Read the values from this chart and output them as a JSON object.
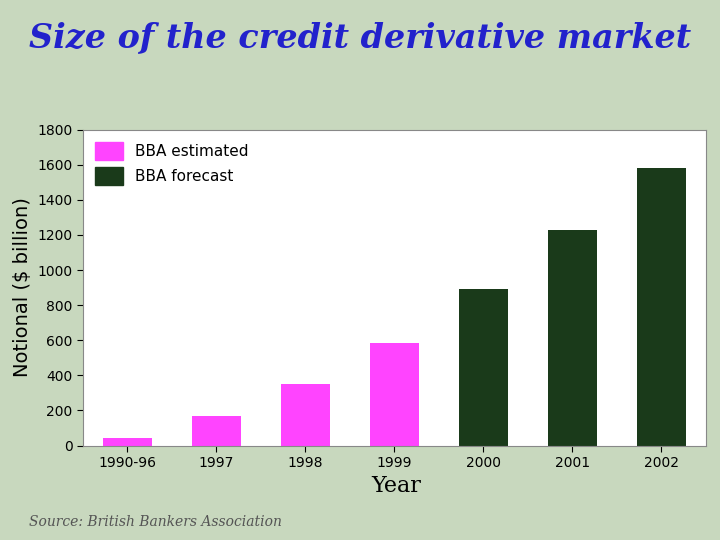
{
  "title": "Size of the credit derivative market",
  "xlabel": "Year",
  "ylabel": "Notional ($ billion)",
  "categories": [
    "1990-96",
    "1997",
    "1998",
    "1999",
    "2000",
    "2001",
    "2002"
  ],
  "values": [
    40,
    170,
    350,
    586,
    893,
    1230,
    1580
  ],
  "bar_colors": [
    "#FF44FF",
    "#FF44FF",
    "#FF44FF",
    "#FF44FF",
    "#1A3A1A",
    "#1A3A1A",
    "#1A3A1A"
  ],
  "ylim": [
    0,
    1800
  ],
  "yticks": [
    0,
    200,
    400,
    600,
    800,
    1000,
    1200,
    1400,
    1600,
    1800
  ],
  "legend_estimated_color": "#FF44FF",
  "legend_forecast_color": "#1A3A1A",
  "legend_estimated_label": "BBA estimated",
  "legend_forecast_label": "BBA forecast",
  "title_color": "#2222CC",
  "source_text": "Source: British Bankers Association",
  "bg_color": "#C8D8BE",
  "plot_bg_color": "#FFFFFF",
  "title_fontsize": 24,
  "axis_label_fontsize": 14,
  "tick_fontsize": 10,
  "legend_fontsize": 11,
  "source_fontsize": 10
}
